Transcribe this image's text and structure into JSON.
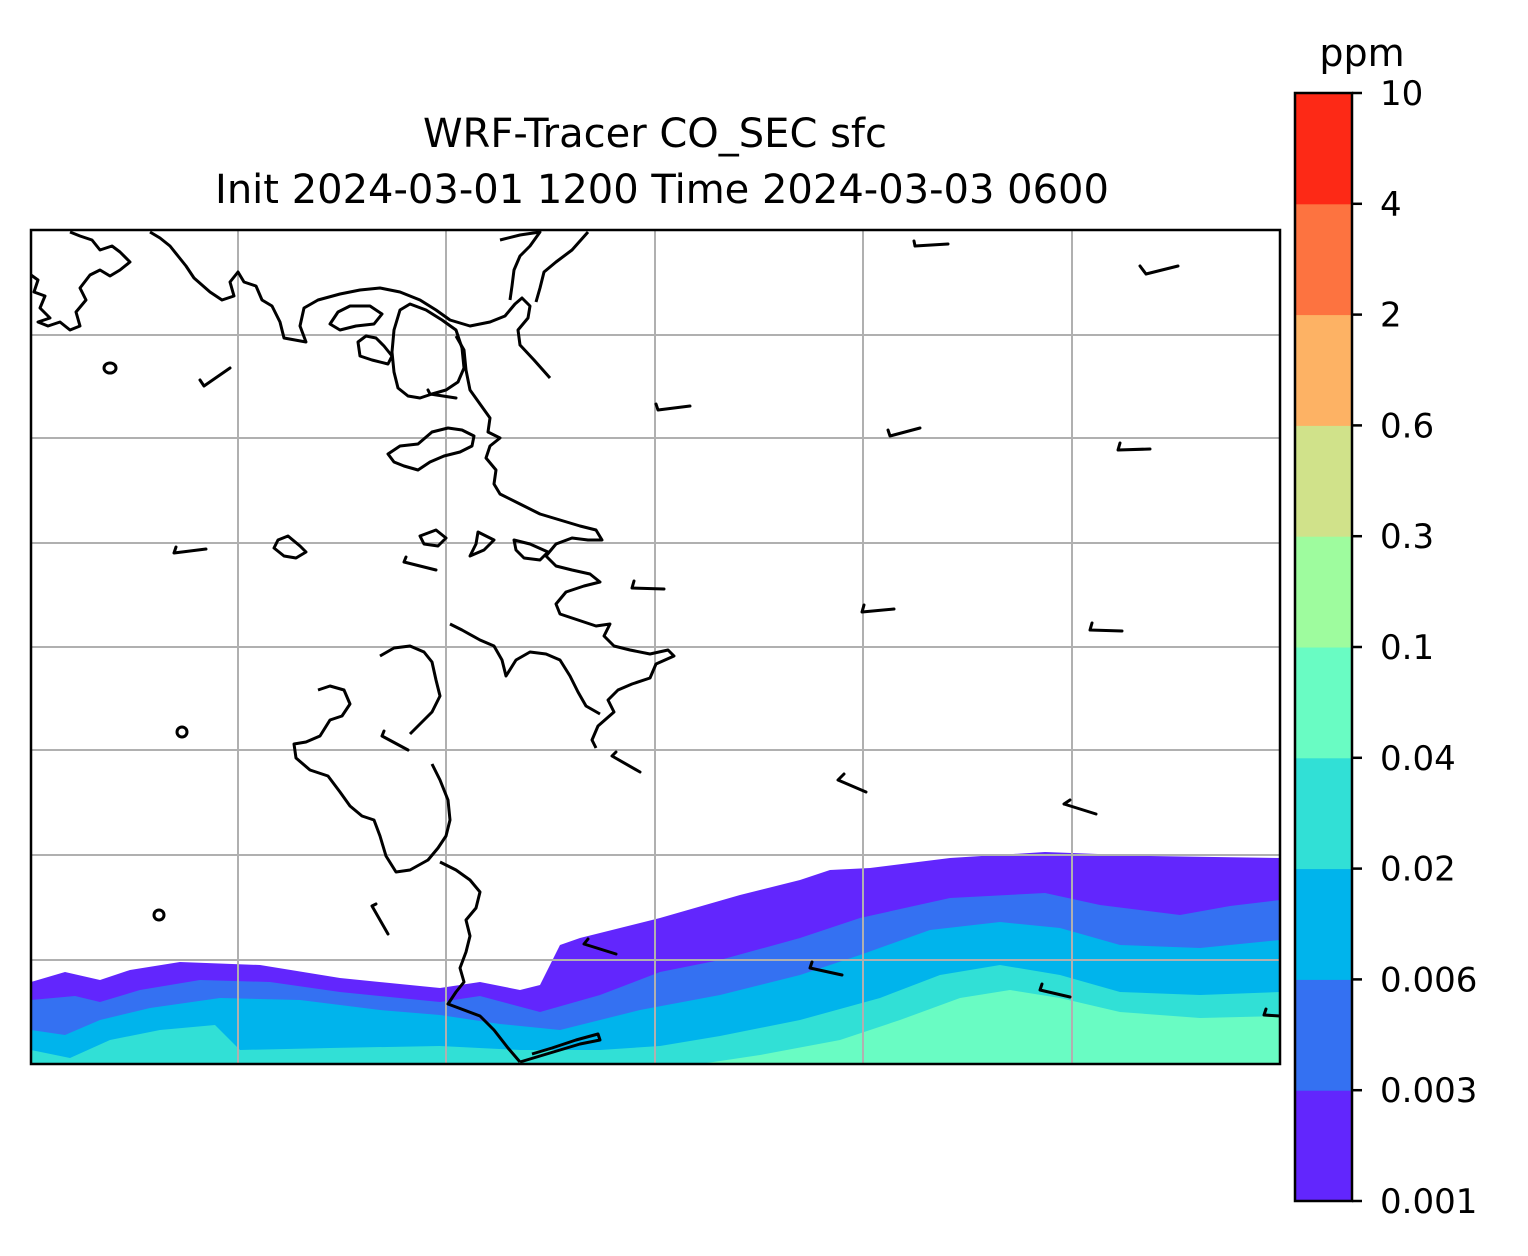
{
  "map": {
    "title_line1": "WRF-Tracer CO_SEC sfc",
    "title_line2": "Init 2024-03-01 1200 Time 2024-03-03 0600",
    "variable": "CO_SEC",
    "level": "sfc",
    "init_time": "2024-03-01 1200",
    "valid_time": "2024-03-03 0600",
    "gridlines": true,
    "gridline_color": "#b0b0b0",
    "coastline_color": "#000000",
    "wind_barbs": true,
    "plume_location": "southern edge, thickening toward the east"
  },
  "colorbar": {
    "unit": "ppm",
    "placement": "right",
    "tick_labels": [
      "0.001",
      "0.003",
      "0.006",
      "0.02",
      "0.04",
      "0.1",
      "0.3",
      "0.6",
      "2",
      "4",
      "10"
    ],
    "levels": [
      0.001,
      0.003,
      0.006,
      0.02,
      0.04,
      0.1,
      0.3,
      0.6,
      2,
      4,
      10
    ],
    "colors": [
      "#6226fd",
      "#3471f2",
      "#00b4ec",
      "#31e0d6",
      "#69fcc3",
      "#9efc9e",
      "#d0e28a",
      "#fdb264",
      "#fd7340",
      "#fd2916"
    ]
  }
}
